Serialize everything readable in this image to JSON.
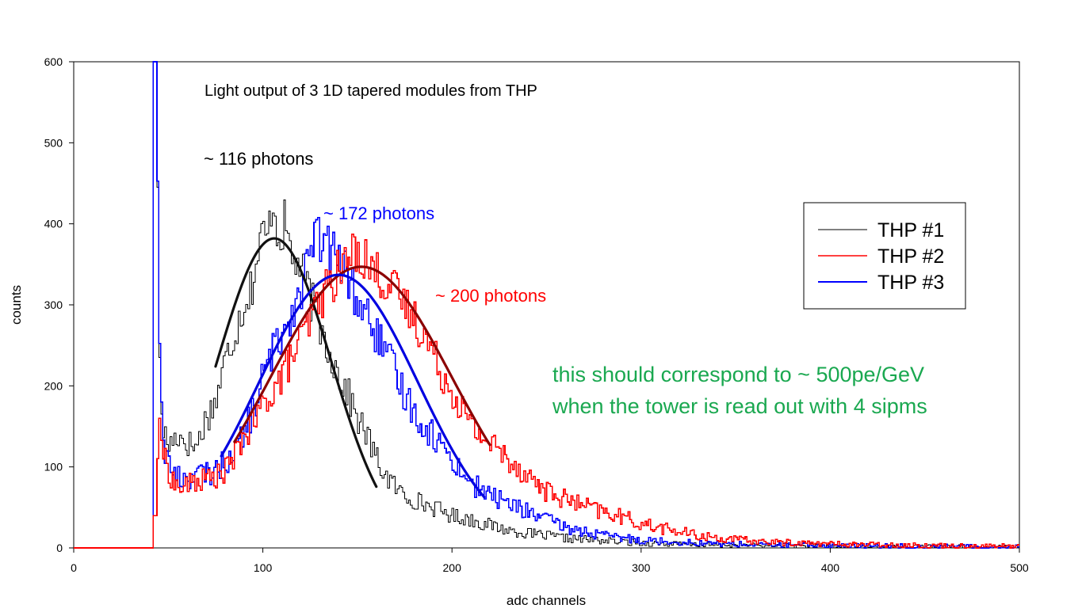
{
  "chart_data": {
    "type": "line",
    "title": "Light output of 3 1D tapered modules from THP",
    "xlabel": "adc channels",
    "ylabel": "counts",
    "xlim": [
      0,
      500
    ],
    "ylim": [
      0,
      600
    ],
    "xticks": [
      0,
      100,
      200,
      300,
      400,
      500
    ],
    "yticks": [
      0,
      100,
      200,
      300,
      400,
      500,
      600
    ],
    "grid": false,
    "legend_position": "top-right",
    "series": [
      {
        "name": "THP #1",
        "color": "#000000",
        "style": "step",
        "points": [
          [
            0,
            0
          ],
          [
            42,
            0
          ],
          [
            42.5,
            600
          ],
          [
            44,
            600
          ],
          [
            45,
            290
          ],
          [
            46,
            180
          ],
          [
            47,
            150
          ],
          [
            50,
            125
          ],
          [
            55,
            140
          ],
          [
            60,
            130
          ],
          [
            65,
            125
          ],
          [
            70,
            160
          ],
          [
            75,
            180
          ],
          [
            80,
            230
          ],
          [
            85,
            265
          ],
          [
            90,
            300
          ],
          [
            95,
            330
          ],
          [
            100,
            390
          ],
          [
            103,
            380
          ],
          [
            105,
            440
          ],
          [
            108,
            385
          ],
          [
            112,
            400
          ],
          [
            115,
            360
          ],
          [
            120,
            345
          ],
          [
            125,
            310
          ],
          [
            130,
            275
          ],
          [
            135,
            245
          ],
          [
            140,
            215
          ],
          [
            145,
            190
          ],
          [
            150,
            160
          ],
          [
            155,
            140
          ],
          [
            160,
            110
          ],
          [
            165,
            90
          ],
          [
            170,
            75
          ],
          [
            175,
            65
          ],
          [
            180,
            60
          ],
          [
            190,
            50
          ],
          [
            200,
            40
          ],
          [
            210,
            35
          ],
          [
            220,
            28
          ],
          [
            230,
            22
          ],
          [
            240,
            18
          ],
          [
            260,
            12
          ],
          [
            280,
            9
          ],
          [
            300,
            6
          ],
          [
            330,
            4
          ],
          [
            360,
            3
          ],
          [
            400,
            2
          ],
          [
            450,
            1
          ],
          [
            500,
            1
          ]
        ]
      },
      {
        "name": "THP #2",
        "color": "#ff0000",
        "style": "step",
        "points": [
          [
            0,
            0
          ],
          [
            42,
            0
          ],
          [
            42.5,
            40
          ],
          [
            44,
            40
          ],
          [
            45,
            180
          ],
          [
            46,
            140
          ],
          [
            48,
            110
          ],
          [
            52,
            85
          ],
          [
            56,
            72
          ],
          [
            62,
            80
          ],
          [
            70,
            85
          ],
          [
            78,
            90
          ],
          [
            85,
            110
          ],
          [
            90,
            140
          ],
          [
            95,
            150
          ],
          [
            100,
            175
          ],
          [
            105,
            195
          ],
          [
            110,
            210
          ],
          [
            115,
            235
          ],
          [
            120,
            255
          ],
          [
            125,
            280
          ],
          [
            130,
            305
          ],
          [
            135,
            325
          ],
          [
            140,
            340
          ],
          [
            145,
            355
          ],
          [
            150,
            370
          ],
          [
            155,
            355
          ],
          [
            160,
            340
          ],
          [
            165,
            330
          ],
          [
            170,
            315
          ],
          [
            175,
            300
          ],
          [
            180,
            285
          ],
          [
            185,
            265
          ],
          [
            190,
            240
          ],
          [
            195,
            215
          ],
          [
            200,
            195
          ],
          [
            205,
            175
          ],
          [
            210,
            150
          ],
          [
            215,
            140
          ],
          [
            220,
            130
          ],
          [
            225,
            120
          ],
          [
            230,
            110
          ],
          [
            240,
            90
          ],
          [
            250,
            70
          ],
          [
            260,
            60
          ],
          [
            270,
            52
          ],
          [
            280,
            44
          ],
          [
            290,
            38
          ],
          [
            300,
            30
          ],
          [
            310,
            25
          ],
          [
            320,
            20
          ],
          [
            330,
            15
          ],
          [
            350,
            10
          ],
          [
            370,
            7
          ],
          [
            400,
            5
          ],
          [
            450,
            3
          ],
          [
            500,
            2
          ]
        ]
      },
      {
        "name": "THP #3",
        "color": "#0000ff",
        "style": "step",
        "points": [
          [
            0,
            0
          ],
          [
            42,
            0
          ],
          [
            42.5,
            600
          ],
          [
            44,
            600
          ],
          [
            45,
            305
          ],
          [
            46,
            200
          ],
          [
            48,
            120
          ],
          [
            52,
            95
          ],
          [
            57,
            85
          ],
          [
            65,
            90
          ],
          [
            72,
            92
          ],
          [
            80,
            105
          ],
          [
            85,
            120
          ],
          [
            90,
            140
          ],
          [
            95,
            170
          ],
          [
            100,
            210
          ],
          [
            105,
            240
          ],
          [
            110,
            265
          ],
          [
            115,
            290
          ],
          [
            120,
            320
          ],
          [
            125,
            360
          ],
          [
            128,
            390
          ],
          [
            130,
            375
          ],
          [
            135,
            370
          ],
          [
            140,
            355
          ],
          [
            145,
            335
          ],
          [
            150,
            305
          ],
          [
            155,
            285
          ],
          [
            160,
            265
          ],
          [
            165,
            240
          ],
          [
            170,
            215
          ],
          [
            175,
            190
          ],
          [
            180,
            170
          ],
          [
            185,
            150
          ],
          [
            190,
            140
          ],
          [
            195,
            125
          ],
          [
            200,
            110
          ],
          [
            205,
            95
          ],
          [
            210,
            80
          ],
          [
            220,
            65
          ],
          [
            230,
            55
          ],
          [
            240,
            45
          ],
          [
            250,
            35
          ],
          [
            260,
            25
          ],
          [
            270,
            20
          ],
          [
            280,
            15
          ],
          [
            300,
            10
          ],
          [
            330,
            6
          ],
          [
            360,
            4
          ],
          [
            400,
            3
          ],
          [
            450,
            2
          ],
          [
            500,
            1
          ]
        ]
      }
    ],
    "fits": [
      {
        "for": "THP #1",
        "color": "#111111",
        "mean": 106,
        "sigma": 30,
        "amplitude": 382,
        "x_range": [
          75,
          160
        ]
      },
      {
        "for": "THP #2",
        "color": "#8b0000",
        "mean": 152,
        "sigma": 48,
        "amplitude": 347,
        "x_range": [
          85,
          220
        ]
      },
      {
        "for": "THP #3",
        "color": "#0000e0",
        "mean": 140,
        "sigma": 42,
        "amplitude": 337,
        "x_range": [
          78,
          217
        ]
      }
    ],
    "annotations": [
      {
        "text": "~ 116 photons",
        "color": "#000000"
      },
      {
        "text": "~ 172 photons",
        "color": "#0000ff"
      },
      {
        "text": "~ 200 photons",
        "color": "#ff0000"
      }
    ],
    "note_lines": [
      "this  should correspond to ~ 500pe/GeV",
      "when the tower is read out with 4 sipms"
    ],
    "note_color": "#1aa850"
  }
}
